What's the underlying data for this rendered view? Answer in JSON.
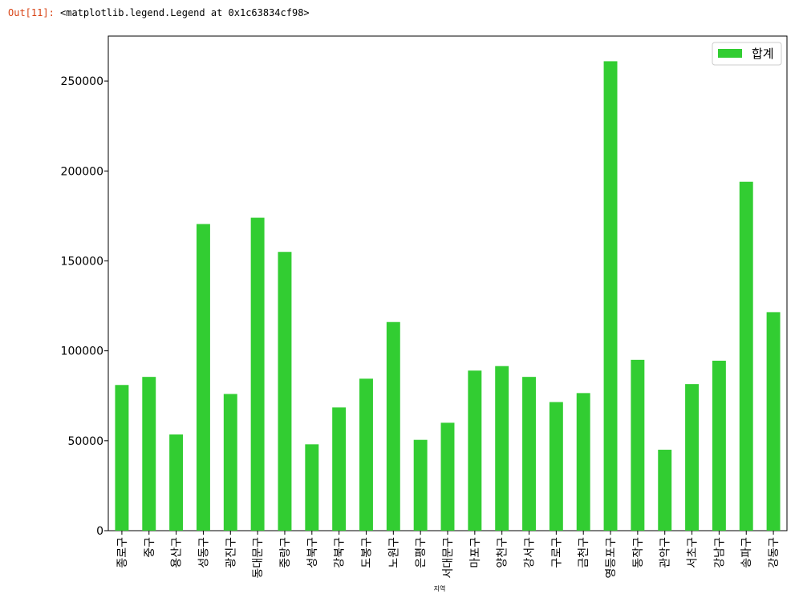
{
  "cell": {
    "prompt": "Out[11]:",
    "output_text": "<matplotlib.legend.Legend at 0x1c63834cf98>"
  },
  "colors": {
    "bar": "#32cd32",
    "axis": "#000000"
  },
  "chart_data": {
    "type": "bar",
    "title": "",
    "xlabel": "지역",
    "ylabel": "",
    "ylim": [
      0,
      275000
    ],
    "yticks": [
      0,
      50000,
      100000,
      150000,
      200000,
      250000
    ],
    "grid": false,
    "legend": {
      "placement": "top-right",
      "entries": [
        "합계"
      ]
    },
    "categories": [
      "종로구",
      "중구",
      "용산구",
      "성동구",
      "광진구",
      "동대문구",
      "중랑구",
      "성북구",
      "강북구",
      "도봉구",
      "노원구",
      "은평구",
      "서대문구",
      "마포구",
      "양천구",
      "강서구",
      "구로구",
      "금천구",
      "영등포구",
      "동작구",
      "관악구",
      "서초구",
      "강남구",
      "송파구",
      "강동구"
    ],
    "series": [
      {
        "name": "합계",
        "values": [
          81000,
          85500,
          53500,
          170500,
          76000,
          174000,
          155000,
          48000,
          68500,
          84500,
          116000,
          50500,
          60000,
          89000,
          91500,
          85500,
          71500,
          76500,
          261000,
          95000,
          45000,
          81500,
          94500,
          194000,
          121500
        ]
      }
    ]
  }
}
